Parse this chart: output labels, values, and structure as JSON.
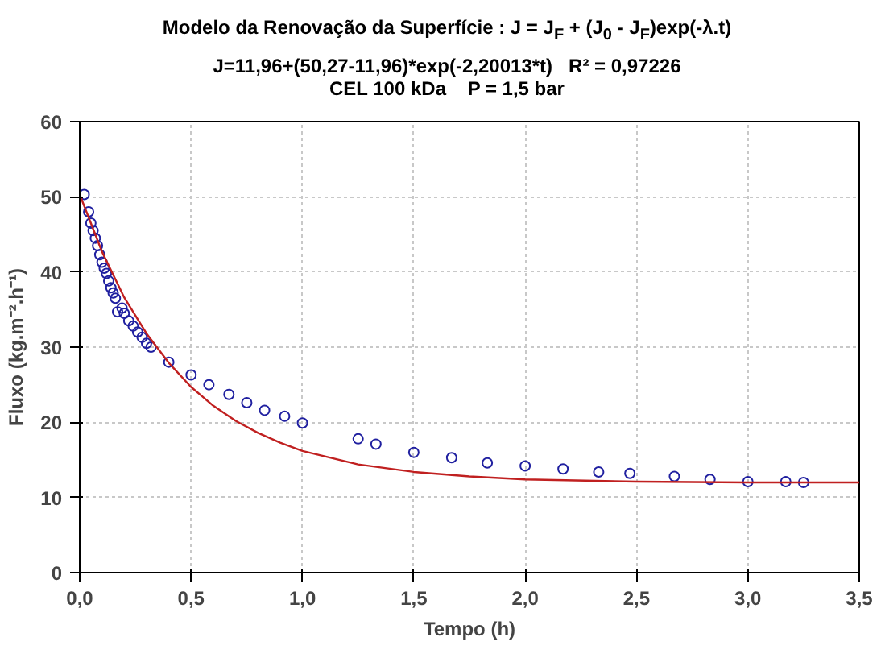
{
  "chart_data": {
    "type": "scatter",
    "title": "Modelo da Renovação da Superfície : J = J$_{F}$ + (J$_{0}$ - J$_{F}$)exp(-λ.t)",
    "subtitle": "J=11,96+(50,27-11,96)*exp(-2,20013*t)   R² = 0,97226\nCEL 100 kDa    P = 1,5 bar",
    "xlabel": "Tempo (h)",
    "ylabel": "Fluxo (kg.m⁻².h⁻¹)",
    "xlim": [
      0,
      3.5
    ],
    "ylim": [
      0,
      60
    ],
    "xticks": [
      {
        "value": 0,
        "label": "0,0"
      },
      {
        "value": 0.5,
        "label": "0,5"
      },
      {
        "value": 1,
        "label": "1,0"
      },
      {
        "value": 1.5,
        "label": "1,5"
      },
      {
        "value": 2,
        "label": "2,0"
      },
      {
        "value": 2.5,
        "label": "2,5"
      },
      {
        "value": 3,
        "label": "3,0"
      },
      {
        "value": 3.5,
        "label": "3,5"
      }
    ],
    "yticks": [
      0,
      10,
      20,
      30,
      40,
      50,
      60
    ],
    "grid": true,
    "marker": "circle",
    "series": [
      {
        "color": "#2020a0",
        "x": [
          0.02,
          0.04,
          0.05,
          0.06,
          0.07,
          0.08,
          0.09,
          0.1,
          0.11,
          0.12,
          0.13,
          0.14,
          0.15,
          0.16,
          0.17,
          0.19,
          0.2,
          0.22,
          0.24,
          0.26,
          0.28,
          0.3,
          0.32,
          0.4,
          0.5,
          0.58,
          0.67,
          0.75,
          0.83,
          0.92,
          1.0,
          1.25,
          1.33,
          1.5,
          1.67,
          1.83,
          2.0,
          2.17,
          2.33,
          2.47,
          2.67,
          2.83,
          3.0,
          3.17,
          3.25
        ],
        "values": [
          50.3,
          48,
          46.5,
          45.5,
          44.5,
          43.5,
          42.3,
          41.3,
          40.5,
          39.8,
          38.8,
          37.9,
          37.2,
          36.5,
          34.7,
          35.2,
          34.5,
          33.5,
          32.8,
          32,
          31.3,
          30.5,
          30,
          28,
          26.3,
          25,
          23.7,
          22.6,
          21.6,
          20.8,
          19.9,
          17.8,
          17.1,
          16.0,
          15.3,
          14.6,
          14.2,
          13.8,
          13.4,
          13.2,
          12.8,
          12.4,
          12.1,
          12.1,
          12.0
        ]
      },
      {
        "type": "line",
        "color": "#c02020",
        "marker": "none",
        "x": [
          0,
          0.1,
          0.2,
          0.3,
          0.4,
          0.5,
          0.6,
          0.7,
          0.8,
          0.9,
          1.0,
          1.25,
          1.5,
          1.75,
          2.0,
          2.5,
          3.0,
          3.5
        ],
        "values": [
          50.3,
          42.7,
          36.6,
          31.8,
          27.9,
          24.7,
          22.2,
          20.2,
          18.6,
          17.3,
          16.2,
          14.4,
          13.4,
          12.8,
          12.4,
          12.1,
          12.0,
          12.0
        ]
      }
    ]
  }
}
